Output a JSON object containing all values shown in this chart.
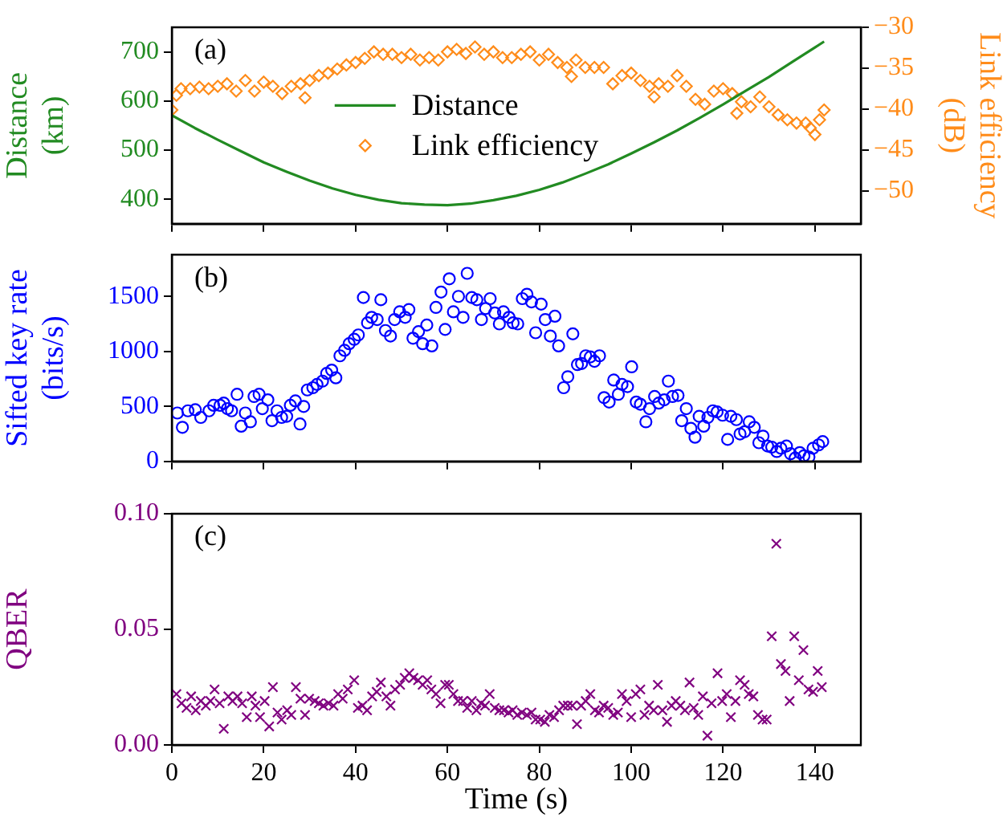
{
  "chart_data": [
    {
      "type": "line",
      "annotations": [
        "(a)"
      ],
      "ylabel": "Distance (km)",
      "y2label": "Link efficiency (dB)",
      "xlim": [
        0,
        150
      ],
      "xticks": [
        0,
        20,
        40,
        60,
        80,
        100,
        120,
        140
      ],
      "ylim": [
        350,
        750
      ],
      "yticks": [
        400,
        500,
        600,
        700
      ],
      "y2lim": [
        -54,
        -30
      ],
      "y2ticks": [
        {
          "value": -30,
          "label": "−30"
        },
        {
          "value": -35,
          "label": "−35"
        },
        {
          "value": -40,
          "label": "−40"
        },
        {
          "value": -45,
          "label": "−45"
        },
        {
          "value": -50,
          "label": "−50"
        }
      ],
      "tick_labels": "y",
      "legend": "center",
      "grid": false,
      "series": [
        {
          "name": "Distance",
          "type": "line",
          "color": "#228b22",
          "x": [
            0,
            5,
            10,
            15,
            20,
            25,
            30,
            35,
            40,
            45,
            50,
            55,
            60,
            65,
            70,
            75,
            80,
            85,
            90,
            95,
            100,
            105,
            110,
            115,
            120,
            125,
            130,
            135,
            140,
            142
          ],
          "values": [
            571,
            545,
            521,
            498,
            475,
            456,
            438,
            422,
            409,
            399,
            392,
            389,
            388,
            391,
            398,
            407,
            419,
            434,
            452,
            471,
            493,
            516,
            540,
            566,
            593,
            621,
            649,
            679,
            709,
            721
          ]
        },
        {
          "name": "Link efficiency",
          "type": "scatter",
          "marker": "diamond",
          "axis": "y2",
          "color": "#ff8c1a",
          "x": [
            0,
            1,
            2,
            4,
            6,
            8,
            10,
            12,
            14,
            16,
            18,
            20,
            22,
            24,
            26,
            28,
            29,
            30,
            32,
            34,
            36,
            38,
            40,
            42,
            44,
            46,
            48,
            50,
            52,
            54,
            56,
            58,
            60,
            62,
            64,
            66,
            68,
            70,
            72,
            74,
            76,
            78,
            80,
            82,
            84,
            86,
            87,
            88,
            90,
            92,
            94,
            96,
            98,
            100,
            102,
            104,
            105,
            106,
            108,
            110,
            112,
            114,
            116,
            118,
            120,
            122,
            123,
            124,
            126,
            128,
            130,
            132,
            134,
            136,
            138,
            139,
            140,
            141,
            142
          ],
          "values": [
            -40.1,
            -38.3,
            -37.5,
            -37.5,
            -37.3,
            -37.5,
            -37.2,
            -36.9,
            -37.8,
            -36.5,
            -37.8,
            -36.7,
            -37.2,
            -38.1,
            -37.2,
            -36.9,
            -38.6,
            -36.5,
            -35.9,
            -35.6,
            -35.1,
            -34.6,
            -34.3,
            -33.8,
            -33.0,
            -33.3,
            -33.3,
            -33.7,
            -33.3,
            -34.0,
            -33.7,
            -34.0,
            -33.0,
            -32.7,
            -33.2,
            -32.4,
            -33.3,
            -33.0,
            -33.7,
            -33.7,
            -33.3,
            -33.0,
            -34.0,
            -33.3,
            -34.3,
            -34.9,
            -36.0,
            -34.0,
            -34.9,
            -34.9,
            -34.9,
            -36.9,
            -35.9,
            -35.6,
            -36.5,
            -37.2,
            -38.5,
            -36.9,
            -37.2,
            -35.9,
            -37.2,
            -38.8,
            -39.4,
            -37.8,
            -37.5,
            -38.1,
            -40.5,
            -39.1,
            -39.7,
            -38.5,
            -39.7,
            -40.7,
            -41.3,
            -41.7,
            -41.7,
            -42.3,
            -43.1,
            -41.3,
            -40.1
          ]
        }
      ]
    },
    {
      "type": "scatter",
      "marker": "circle",
      "color": "#0000ff",
      "annotations": [
        "(b)"
      ],
      "ylabel": "Sifted key rate (bits/s)",
      "xlim": [
        0,
        150
      ],
      "xticks": [
        0,
        20,
        40,
        60,
        80,
        100,
        120,
        140
      ],
      "ylim": [
        0,
        1880
      ],
      "yticks": [
        0,
        500,
        1000,
        1500
      ],
      "tick_labels": "y",
      "grid": false,
      "x": [
        1.2,
        2.3,
        3.5,
        5.1,
        6.3,
        8.1,
        9.1,
        10.5,
        11.3,
        12.1,
        13,
        14.2,
        15.1,
        16,
        17.1,
        17.9,
        19,
        19.7,
        20.9,
        21.8,
        22.9,
        23.9,
        25,
        25.8,
        26.9,
        27.9,
        28.7,
        29.5,
        30.7,
        31.6,
        32.8,
        33.7,
        34.8,
        35.7,
        36.6,
        37.6,
        38.6,
        39.7,
        40.6,
        41.7,
        42.6,
        43.5,
        44.7,
        45.5,
        46.5,
        47.6,
        48.5,
        49.6,
        50.8,
        51.6,
        52.5,
        53.7,
        54.6,
        55.5,
        56.6,
        57.5,
        58.6,
        59.5,
        60.4,
        61.3,
        62.4,
        63.4,
        64.3,
        65.3,
        66.4,
        67.4,
        68.3,
        69.3,
        70.3,
        71.3,
        72.2,
        73.4,
        74.3,
        75.3,
        76.3,
        77.3,
        78.3,
        79.2,
        80.4,
        81.3,
        82.4,
        83.4,
        84.2,
        85.3,
        86.2,
        87.3,
        88.3,
        89.2,
        90.1,
        91.1,
        92,
        93.1,
        94.1,
        95.2,
        96.2,
        97.2,
        98,
        99.2,
        100.1,
        101.1,
        102,
        103.2,
        104,
        105.1,
        106,
        107.2,
        108.1,
        109,
        110.2,
        111,
        112,
        113,
        113.9,
        114.8,
        115.8,
        116.7,
        117.8,
        118.7,
        119.9,
        121,
        121.7,
        122.9,
        123.7,
        124.7,
        125.7,
        126.8,
        127.8,
        128.7,
        129.7,
        130.6,
        131.7,
        132.6,
        133.8,
        134.7,
        135.7,
        136.7,
        137.6,
        138.7,
        139.6,
        140.8,
        141.7
      ],
      "values": [
        440,
        310,
        460,
        470,
        400,
        460,
        510,
        510,
        530,
        480,
        460,
        610,
        320,
        440,
        360,
        590,
        610,
        480,
        560,
        370,
        460,
        400,
        410,
        510,
        550,
        340,
        500,
        650,
        670,
        700,
        730,
        800,
        830,
        760,
        960,
        1010,
        1070,
        1110,
        1150,
        1490,
        1260,
        1310,
        1290,
        1470,
        1190,
        1140,
        1290,
        1360,
        1310,
        1380,
        1120,
        1180,
        1070,
        1240,
        1050,
        1400,
        1540,
        1200,
        1660,
        1360,
        1500,
        1310,
        1710,
        1490,
        1470,
        1290,
        1390,
        1480,
        1350,
        1250,
        1360,
        1310,
        1260,
        1250,
        1480,
        1520,
        1450,
        1170,
        1430,
        1290,
        1140,
        1320,
        1050,
        670,
        770,
        1160,
        880,
        890,
        960,
        950,
        910,
        960,
        580,
        540,
        740,
        610,
        700,
        680,
        860,
        540,
        520,
        360,
        480,
        590,
        530,
        560,
        730,
        590,
        600,
        370,
        480,
        300,
        220,
        410,
        320,
        400,
        460,
        450,
        420,
        200,
        410,
        380,
        250,
        270,
        360,
        310,
        170,
        230,
        140,
        130,
        90,
        120,
        140,
        70,
        30,
        80,
        50,
        40,
        120,
        150,
        180
      ]
    },
    {
      "type": "scatter",
      "marker": "cross",
      "color": "#800080",
      "annotations": [
        "(c)"
      ],
      "xlabel": "Time (s)",
      "ylabel": "QBER",
      "xlim": [
        0,
        150
      ],
      "xticks": [
        0,
        20,
        40,
        60,
        80,
        100,
        120,
        140
      ],
      "ylim": [
        0,
        0.1
      ],
      "yticks": [
        {
          "value": 0,
          "label": "0.00"
        },
        {
          "value": 0.05,
          "label": "0.05"
        },
        {
          "value": 0.1,
          "label": "0.10"
        }
      ],
      "grid": false,
      "x": [
        1,
        2.1,
        3.2,
        4.2,
        5.2,
        6.3,
        7.4,
        8.4,
        9.3,
        10.4,
        11.3,
        12.3,
        13.2,
        14.3,
        15.3,
        16.3,
        17.4,
        18.2,
        19.2,
        20.2,
        21.2,
        22,
        23,
        23.9,
        25.1,
        26,
        27,
        28,
        29,
        29.9,
        31.1,
        32,
        33,
        34.1,
        35.2,
        36.2,
        37.2,
        38.3,
        39.7,
        40.5,
        41.5,
        42.5,
        43.6,
        44.6,
        45.5,
        46.7,
        47.6,
        48.6,
        49.7,
        50.7,
        51.7,
        52.6,
        53.6,
        54.6,
        55.6,
        56.5,
        57.5,
        58.5,
        59.5,
        60.3,
        61.3,
        62.3,
        63.4,
        64.3,
        65.3,
        66.3,
        67.3,
        68.2,
        69.2,
        70.3,
        71.3,
        72.3,
        73.3,
        74.2,
        75.2,
        76.2,
        77.3,
        78.3,
        79.2,
        80.2,
        81.2,
        82.2,
        83.2,
        84.3,
        85.2,
        86.2,
        87.2,
        88.2,
        89.1,
        90.1,
        91.1,
        92.1,
        93,
        94,
        95,
        96.1,
        97.1,
        98,
        99,
        100,
        101,
        102,
        102.9,
        103.9,
        104.9,
        105.8,
        106.8,
        107.8,
        108.8,
        109.7,
        110.7,
        111.7,
        112.7,
        113.6,
        114.6,
        115.6,
        116.6,
        117.5,
        118.8,
        119.8,
        120.8,
        121.7,
        122.7,
        123.7,
        124.7,
        125.6,
        126.6,
        127.6,
        128.6,
        129.5,
        130.6,
        131.6,
        132.6,
        133.6,
        134.5,
        135.5,
        136.5,
        137.5,
        138.6,
        139.6,
        140.6,
        141.5
      ],
      "values": [
        0.022,
        0.018,
        0.016,
        0.021,
        0.015,
        0.019,
        0.017,
        0.019,
        0.024,
        0.018,
        0.007,
        0.021,
        0.019,
        0.021,
        0.018,
        0.012,
        0.021,
        0.017,
        0.012,
        0.019,
        0.008,
        0.025,
        0.014,
        0.011,
        0.015,
        0.013,
        0.025,
        0.02,
        0.013,
        0.02,
        0.019,
        0.018,
        0.017,
        0.018,
        0.017,
        0.022,
        0.02,
        0.024,
        0.028,
        0.016,
        0.017,
        0.015,
        0.021,
        0.023,
        0.027,
        0.021,
        0.017,
        0.024,
        0.026,
        0.029,
        0.031,
        0.029,
        0.028,
        0.026,
        0.028,
        0.024,
        0.022,
        0.018,
        0.026,
        0.026,
        0.022,
        0.019,
        0.019,
        0.016,
        0.019,
        0.015,
        0.018,
        0.017,
        0.022,
        0.016,
        0.015,
        0.015,
        0.014,
        0.015,
        0.013,
        0.014,
        0.013,
        0.014,
        0.011,
        0.011,
        0.01,
        0.013,
        0.012,
        0.015,
        0.017,
        0.017,
        0.017,
        0.009,
        0.017,
        0.019,
        0.022,
        0.015,
        0.014,
        0.017,
        0.016,
        0.013,
        0.014,
        0.022,
        0.019,
        0.012,
        0.022,
        0.024,
        0.013,
        0.017,
        0.015,
        0.026,
        0.015,
        0.01,
        0.017,
        0.019,
        0.017,
        0.015,
        0.027,
        0.016,
        0.013,
        0.021,
        0.004,
        0.018,
        0.031,
        0.019,
        0.022,
        0.012,
        0.019,
        0.028,
        0.026,
        0.022,
        0.021,
        0.013,
        0.011,
        0.011,
        0.047,
        0.087,
        0.035,
        0.032,
        0.019,
        0.047,
        0.028,
        0.041,
        0.024,
        0.023,
        0.032,
        0.025
      ]
    }
  ]
}
